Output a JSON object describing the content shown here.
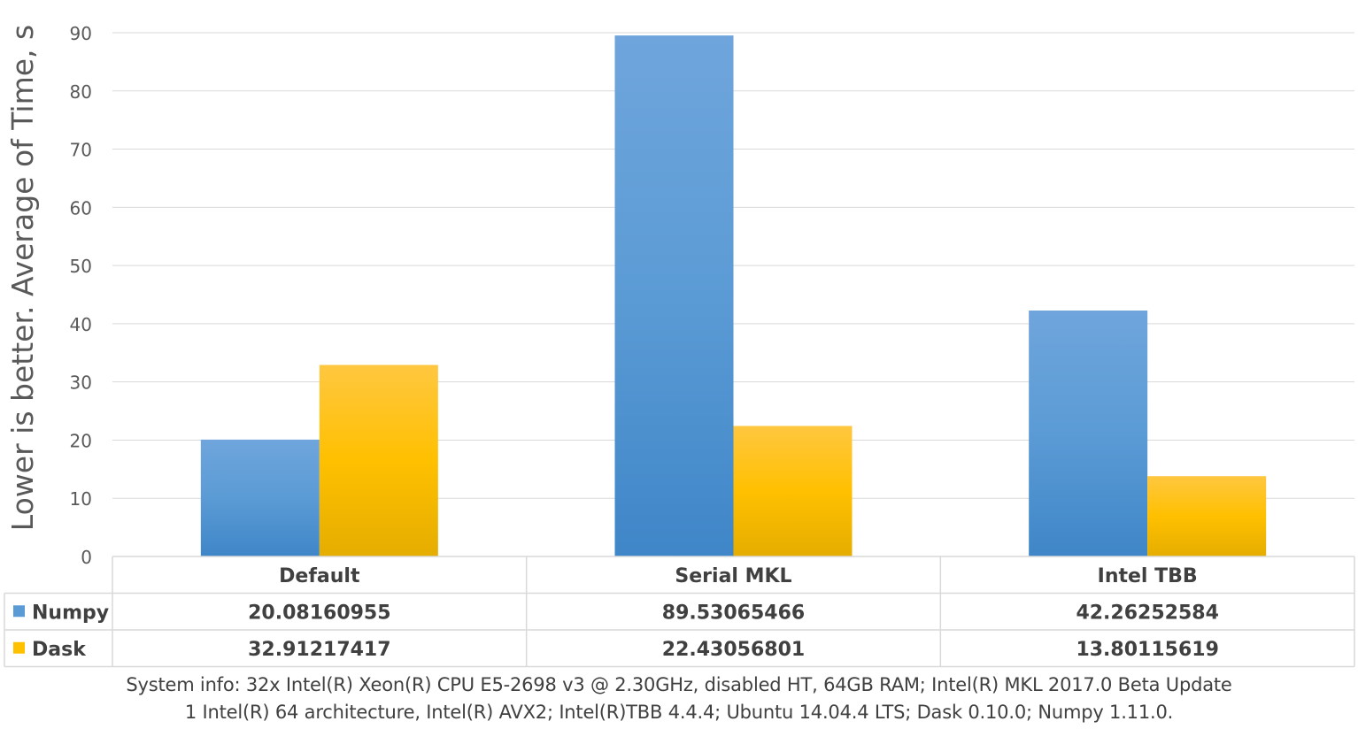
{
  "chart_data": {
    "type": "bar",
    "ylabel": "Lower is better. Average of Time, s",
    "ylim": [
      0,
      90
    ],
    "yticks": [
      0,
      10,
      20,
      30,
      40,
      50,
      60,
      70,
      80,
      90
    ],
    "grid": true,
    "categories": [
      "Default",
      "Serial MKL",
      "Intel TBB"
    ],
    "series": [
      {
        "name": "Numpy",
        "color": "#5B9BD5",
        "values": [
          20.08160955,
          89.53065466,
          42.26252584
        ],
        "value_labels": [
          "20.08160955",
          "89.53065466",
          "42.26252584"
        ]
      },
      {
        "name": "Dask",
        "color": "#FFC000",
        "values": [
          32.91217417,
          22.43056801,
          13.80115619
        ],
        "value_labels": [
          "32.91217417",
          "22.43056801",
          "13.80115619"
        ]
      }
    ],
    "data_table": true
  },
  "footnote": {
    "line1": "System info: 32x Intel(R) Xeon(R) CPU E5-2698 v3 @ 2.30GHz, disabled HT, 64GB RAM;  Intel(R) MKL 2017.0 Beta Update",
    "line2": "1 Intel(R) 64 architecture, Intel(R) AVX2; Intel(R)TBB 4.4.4; Ubuntu 14.04.4 LTS; Dask 0.10.0; Numpy 1.11.0."
  }
}
